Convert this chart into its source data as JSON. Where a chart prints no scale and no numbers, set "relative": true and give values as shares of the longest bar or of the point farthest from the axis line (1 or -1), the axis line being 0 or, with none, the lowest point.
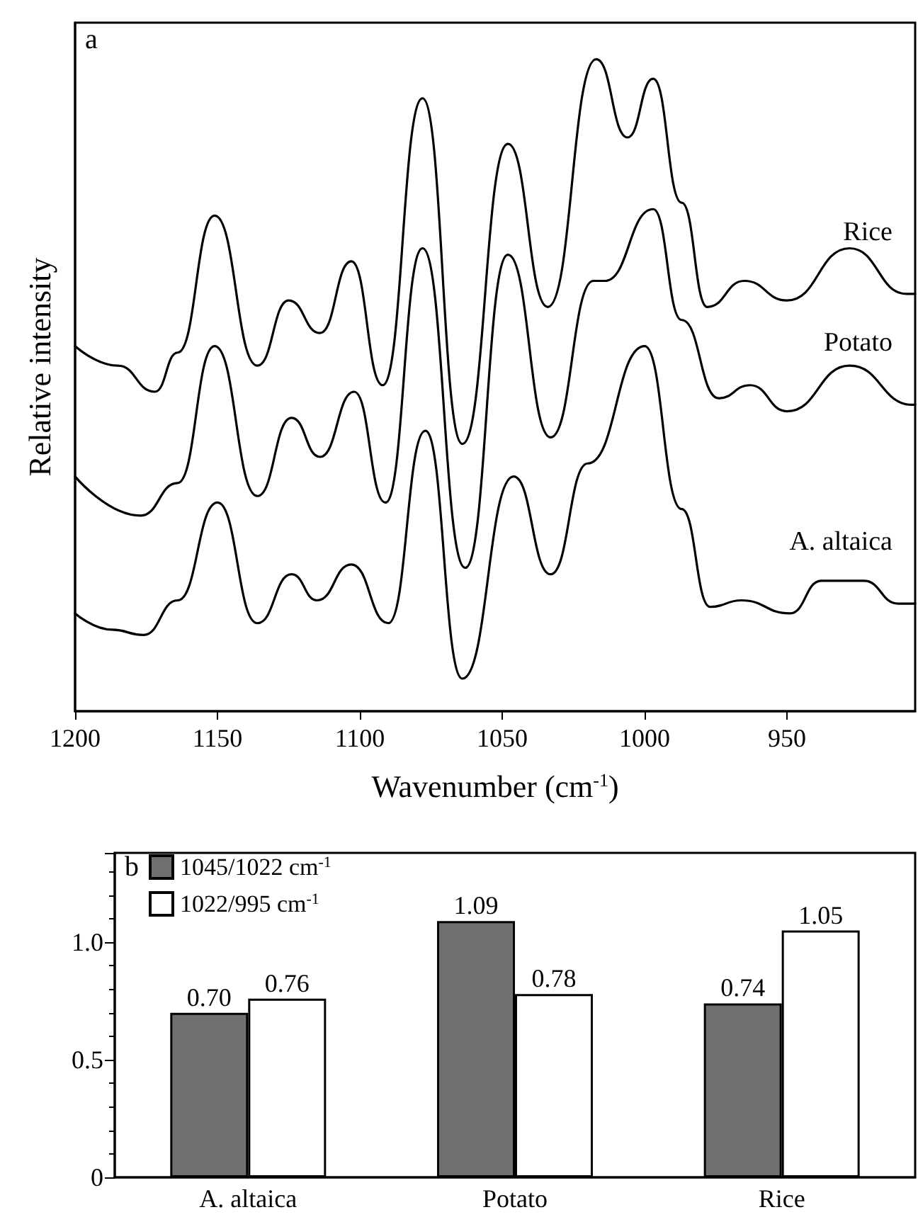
{
  "chart_data": [
    {
      "type": "line",
      "relative": true,
      "xlabel": "Wavenumber (cm$^{-1}$)",
      "ylabel": "Relative intensity",
      "annotations": [
        "a"
      ],
      "xlim": [
        1200,
        905
      ],
      "xticks": [
        1200,
        1150,
        1100,
        1050,
        1000,
        950
      ],
      "grid": false,
      "legend": false,
      "marker": "none",
      "line_style": "solid",
      "series": [
        {
          "name": "Rice",
          "color": "#000000",
          "x": [
            1200,
            1185,
            1172,
            1164,
            1151,
            1136,
            1125,
            1114,
            1103,
            1092,
            1078,
            1064,
            1048,
            1034,
            1017,
            1006,
            997,
            987,
            978,
            965,
            950,
            928,
            908,
            905
          ],
          "values": [
            0.56,
            0.53,
            0.49,
            0.55,
            0.76,
            0.53,
            0.63,
            0.58,
            0.69,
            0.5,
            0.94,
            0.41,
            0.87,
            0.62,
            1.0,
            0.88,
            0.97,
            0.78,
            0.62,
            0.66,
            0.63,
            0.71,
            0.64,
            0.64
          ]
        },
        {
          "name": "Potato",
          "color": "#000000",
          "x": [
            1200,
            1177,
            1164,
            1151,
            1136,
            1124,
            1114,
            1102,
            1091,
            1078,
            1063,
            1048,
            1033,
            1018,
            1014,
            997,
            987,
            974,
            963,
            950,
            928,
            906,
            905
          ],
          "values": [
            0.36,
            0.3,
            0.35,
            0.56,
            0.33,
            0.45,
            0.39,
            0.49,
            0.32,
            0.71,
            0.22,
            0.7,
            0.42,
            0.66,
            0.66,
            0.77,
            0.6,
            0.48,
            0.5,
            0.46,
            0.53,
            0.47,
            0.47
          ]
        },
        {
          "name": "A. altaica",
          "color": "#000000",
          "x": [
            1200,
            1187,
            1176,
            1164,
            1150,
            1136,
            1124,
            1115,
            1103,
            1090,
            1077,
            1064,
            1046,
            1033,
            1020,
            1000,
            987,
            977,
            966,
            949,
            938,
            923,
            911,
            905
          ],
          "values": [
            0.15,
            0.125,
            0.117,
            0.17,
            0.32,
            0.135,
            0.21,
            0.17,
            0.225,
            0.135,
            0.43,
            0.05,
            0.36,
            0.21,
            0.38,
            0.56,
            0.31,
            0.16,
            0.17,
            0.15,
            0.2,
            0.2,
            0.165,
            0.165
          ]
        }
      ]
    },
    {
      "type": "bar",
      "annotations": [
        "b"
      ],
      "categories": [
        "A. altaica",
        "Potato",
        "Rice"
      ],
      "ylim": [
        0,
        1.38
      ],
      "yticks": [
        0,
        0.5,
        {
          "value": 1,
          "label": "1.0"
        }
      ],
      "grid": false,
      "legend": "top left",
      "series": [
        {
          "name": "1045/1022 cm$^{-1}$",
          "color": "#707070",
          "values": [
            0.7,
            1.09,
            0.74
          ],
          "value_labels": [
            "0.70",
            "1.09",
            "0.74"
          ]
        },
        {
          "name": "1022/995 cm$^{-1}$",
          "color": "#ffffff",
          "values": [
            0.76,
            0.78,
            1.05
          ],
          "value_labels": [
            "0.76",
            "0.78",
            "1.05"
          ]
        }
      ]
    }
  ]
}
